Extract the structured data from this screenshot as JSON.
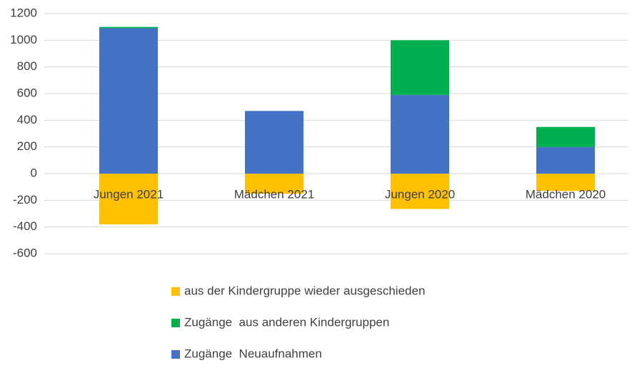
{
  "chart_data": {
    "type": "stacked_bar",
    "categories": [
      "Jungen 2021",
      "Mädchen 2021",
      "Jungen 2020",
      "Mädchen 2020"
    ],
    "series": [
      {
        "name": "Zugänge  Neuaufnahmen",
        "color": "#4472c4",
        "values": [
          1090,
          470,
          590,
          200
        ]
      },
      {
        "name": "Zugänge  aus anderen Kindergruppen",
        "color": "#00b050",
        "values": [
          10,
          0,
          410,
          150
        ]
      },
      {
        "name": "aus der Kindergruppe wieder ausgeschieden",
        "color": "#ffc000",
        "values": [
          -380,
          -150,
          -265,
          -130
        ]
      }
    ],
    "ylim": [
      -600,
      1200
    ],
    "yticks": [
      -600,
      -400,
      -200,
      0,
      200,
      400,
      600,
      800,
      1000,
      1200
    ],
    "grid": true
  }
}
